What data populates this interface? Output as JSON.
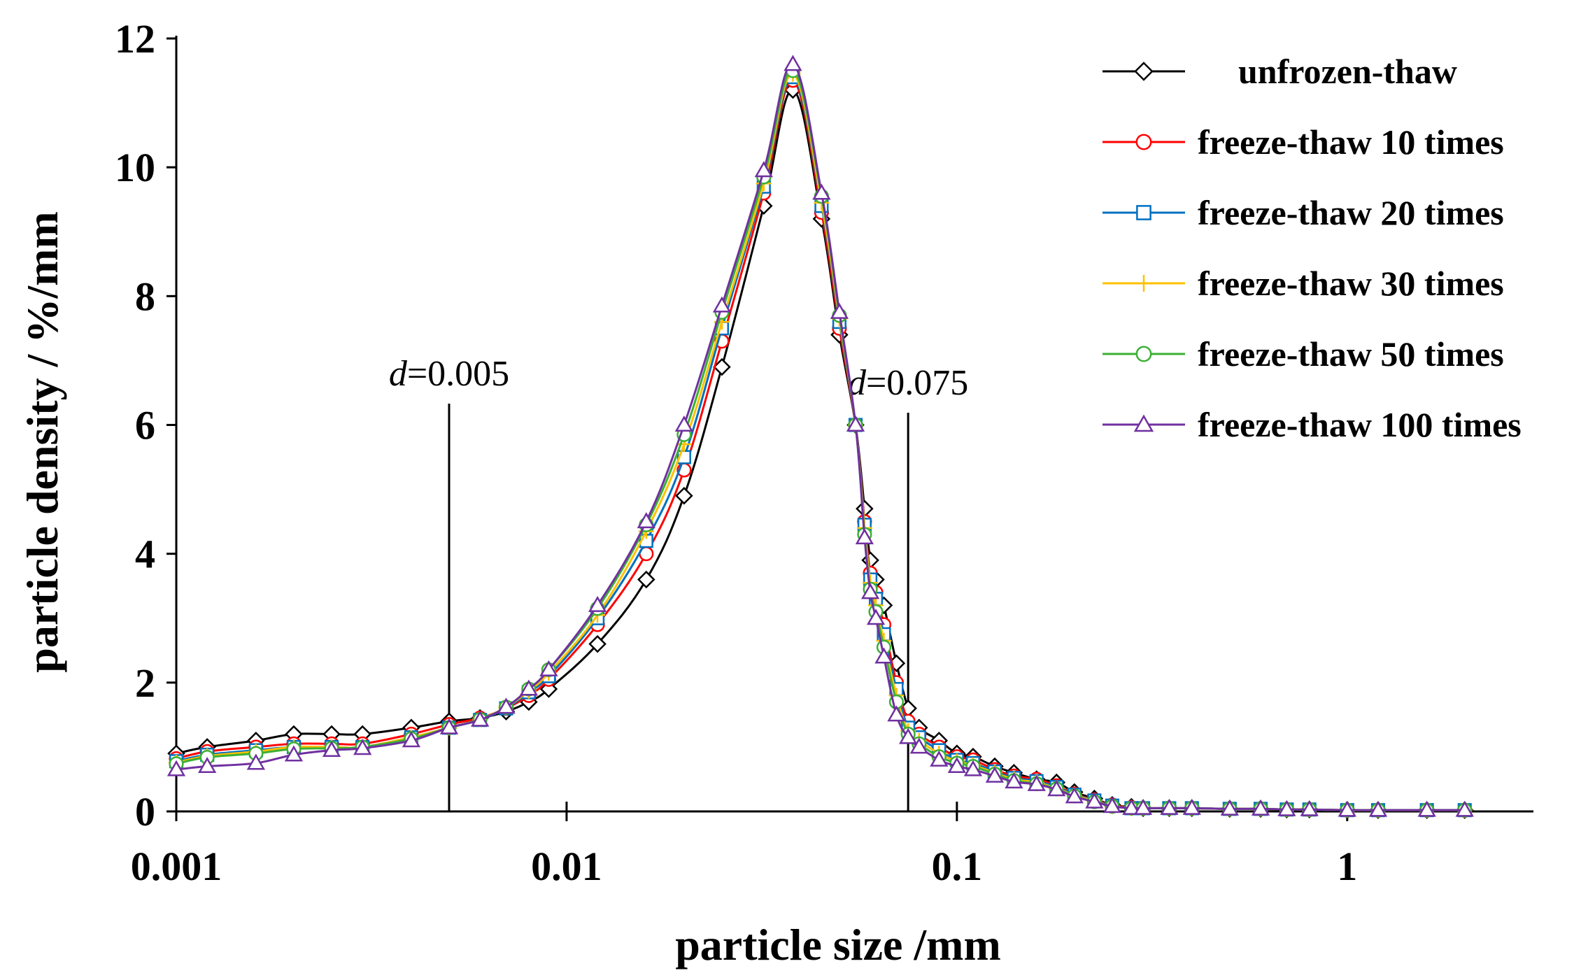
{
  "chart_data": {
    "type": "line",
    "xscale": "log",
    "title": "",
    "xlabel": "particle size /mm",
    "ylabel": "particle density / %/mm",
    "xlim": [
      0.001,
      3
    ],
    "ylim": [
      0,
      12
    ],
    "x_ticks": [
      0.001,
      0.01,
      0.1,
      1
    ],
    "x_tick_labels": [
      "0.001",
      "0.01",
      "0.1",
      "1"
    ],
    "y_ticks": [
      0,
      2,
      4,
      6,
      8,
      10,
      12
    ],
    "y_tick_labels": [
      "0",
      "2",
      "4",
      "6",
      "8",
      "10",
      "12"
    ],
    "grid": false,
    "legend_position": "top-right",
    "x": [
      0.001,
      0.0012,
      0.0016,
      0.002,
      0.0025,
      0.003,
      0.004,
      0.005,
      0.006,
      0.007,
      0.008,
      0.009,
      0.012,
      0.016,
      0.02,
      0.025,
      0.032,
      0.038,
      0.045,
      0.05,
      0.055,
      0.058,
      0.06,
      0.062,
      0.065,
      0.07,
      0.075,
      0.08,
      0.09,
      0.1,
      0.11,
      0.125,
      0.14,
      0.16,
      0.18,
      0.2,
      0.225,
      0.25,
      0.28,
      0.3,
      0.35,
      0.4,
      0.5,
      0.6,
      0.7,
      0.8,
      1.0,
      1.2,
      1.6,
      2.0
    ],
    "series": [
      {
        "name": "unfrozen-thaw",
        "color": "#000000",
        "marker": "diamond",
        "values": [
          0.9,
          1.0,
          1.1,
          1.2,
          1.2,
          1.2,
          1.3,
          1.4,
          1.45,
          1.55,
          1.7,
          1.9,
          2.6,
          3.6,
          4.9,
          6.9,
          9.4,
          11.2,
          9.2,
          7.4,
          6.0,
          4.7,
          3.9,
          3.6,
          3.2,
          2.3,
          1.6,
          1.3,
          1.1,
          0.9,
          0.85,
          0.7,
          0.6,
          0.5,
          0.45,
          0.3,
          0.2,
          0.1,
          0.07,
          0.05,
          0.05,
          0.05,
          0.04,
          0.04,
          0.03,
          0.03,
          0.02,
          0.02,
          0.02,
          0.02
        ]
      },
      {
        "name": "freeze-thaw 10 times",
        "color": "#ff0000",
        "marker": "circle",
        "values": [
          0.82,
          0.93,
          1.0,
          1.05,
          1.05,
          1.05,
          1.2,
          1.35,
          1.45,
          1.6,
          1.8,
          2.05,
          2.9,
          4.0,
          5.3,
          7.3,
          9.6,
          11.35,
          9.3,
          7.5,
          6.0,
          4.5,
          3.7,
          3.4,
          2.9,
          2.0,
          1.4,
          1.2,
          1.0,
          0.85,
          0.8,
          0.65,
          0.55,
          0.5,
          0.4,
          0.27,
          0.18,
          0.1,
          0.06,
          0.05,
          0.05,
          0.05,
          0.04,
          0.04,
          0.03,
          0.03,
          0.02,
          0.02,
          0.02,
          0.02
        ]
      },
      {
        "name": "freeze-thaw 20 times",
        "color": "#0070c0",
        "marker": "square",
        "values": [
          0.78,
          0.88,
          0.95,
          1.0,
          1.0,
          1.0,
          1.15,
          1.3,
          1.42,
          1.6,
          1.85,
          2.1,
          3.0,
          4.2,
          5.5,
          7.5,
          9.7,
          11.4,
          9.4,
          7.6,
          6.0,
          4.45,
          3.6,
          3.3,
          2.75,
          1.9,
          1.3,
          1.15,
          0.95,
          0.8,
          0.75,
          0.62,
          0.52,
          0.47,
          0.38,
          0.26,
          0.17,
          0.09,
          0.05,
          0.05,
          0.05,
          0.05,
          0.04,
          0.04,
          0.03,
          0.03,
          0.02,
          0.02,
          0.02,
          0.02
        ]
      },
      {
        "name": "freeze-thaw 30 times",
        "color": "#ffc000",
        "marker": "plus",
        "values": [
          0.76,
          0.86,
          0.93,
          1.0,
          1.0,
          1.0,
          1.15,
          1.3,
          1.43,
          1.62,
          1.87,
          2.15,
          3.05,
          4.35,
          5.7,
          7.6,
          9.75,
          11.45,
          9.45,
          7.65,
          6.0,
          4.4,
          3.55,
          3.2,
          2.65,
          1.8,
          1.25,
          1.1,
          0.9,
          0.78,
          0.72,
          0.6,
          0.5,
          0.45,
          0.36,
          0.25,
          0.16,
          0.08,
          0.05,
          0.05,
          0.05,
          0.05,
          0.04,
          0.04,
          0.03,
          0.03,
          0.02,
          0.02,
          0.02,
          0.02
        ]
      },
      {
        "name": "freeze-thaw 50 times",
        "color": "#3cb034",
        "marker": "circle",
        "values": [
          0.74,
          0.84,
          0.9,
          0.97,
          0.98,
          1.0,
          1.13,
          1.3,
          1.43,
          1.62,
          1.9,
          2.2,
          3.15,
          4.45,
          5.85,
          7.75,
          9.85,
          11.5,
          9.55,
          7.7,
          6.0,
          4.3,
          3.45,
          3.1,
          2.55,
          1.7,
          1.2,
          1.05,
          0.85,
          0.75,
          0.7,
          0.58,
          0.48,
          0.43,
          0.35,
          0.24,
          0.15,
          0.08,
          0.05,
          0.05,
          0.05,
          0.05,
          0.04,
          0.04,
          0.03,
          0.03,
          0.02,
          0.02,
          0.02,
          0.02
        ]
      },
      {
        "name": "freeze-thaw 100 times",
        "color": "#7030a0",
        "marker": "triangle",
        "values": [
          0.65,
          0.7,
          0.75,
          0.88,
          0.95,
          0.98,
          1.1,
          1.3,
          1.42,
          1.62,
          1.9,
          2.2,
          3.2,
          4.5,
          6.0,
          7.85,
          9.95,
          11.6,
          9.6,
          7.75,
          6.0,
          4.25,
          3.4,
          3.0,
          2.4,
          1.5,
          1.15,
          1.0,
          0.8,
          0.7,
          0.65,
          0.55,
          0.46,
          0.42,
          0.34,
          0.23,
          0.15,
          0.08,
          0.05,
          0.05,
          0.05,
          0.05,
          0.04,
          0.04,
          0.03,
          0.03,
          0.02,
          0.02,
          0.02,
          0.02
        ]
      }
    ],
    "annotations": [
      {
        "var": "d",
        "eq": "=0.005",
        "x": 0.005
      },
      {
        "var": "d",
        "eq": "=0.075",
        "x": 0.075
      }
    ]
  }
}
